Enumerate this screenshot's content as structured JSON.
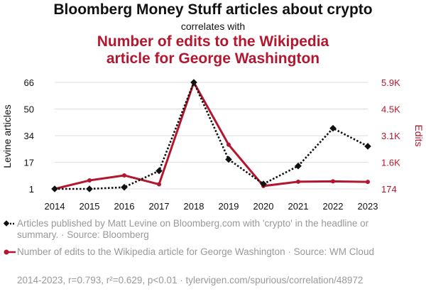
{
  "header": {
    "title": "Bloomberg Money Stuff articles about crypto",
    "correlates": "correlates with",
    "subtitle_line1": "Number of edits to the Wikipedia",
    "subtitle_line2": "article for George Washington"
  },
  "colors": {
    "series1": "#111111",
    "series2": "#b3172f",
    "grid": "#dddddd"
  },
  "chart_data": {
    "type": "line",
    "title": "Bloomberg Money Stuff articles about crypto correlates with Number of edits to the Wikipedia article for George Washington",
    "x": [
      2014,
      2015,
      2016,
      2017,
      2018,
      2019,
      2020,
      2021,
      2022,
      2023
    ],
    "xlabel": "",
    "y_left": {
      "label": "Levine articles",
      "ticks": [
        "1",
        "17",
        "34",
        "50",
        "66"
      ],
      "range": [
        1,
        66
      ]
    },
    "y_right": {
      "label": "Edits",
      "ticks": [
        "174",
        "1.6K",
        "3.1K",
        "4.5K",
        "5.9K"
      ],
      "range": [
        174,
        5900
      ]
    },
    "series": [
      {
        "name": "Levine articles",
        "axis": "left",
        "style": "dotted",
        "marker": "diamond",
        "values": [
          1,
          1,
          2,
          12,
          66,
          19,
          4,
          15,
          38,
          27
        ]
      },
      {
        "name": "Edits",
        "axis": "right",
        "style": "solid",
        "marker": "circle",
        "values": [
          174,
          630,
          900,
          420,
          5900,
          2550,
          330,
          560,
          580,
          550
        ]
      }
    ],
    "grid": "horizontal"
  },
  "legend": {
    "item1": "Articles published by Matt Levine on Bloomberg.com with 'crypto' in the headline or summary. · Source: Bloomberg",
    "item2": "Number of edits to the Wikipedia article for George Washington · Source: WM Cloud"
  },
  "footer": "2014-2023, r=0.793, r²=0.629, p<0.01 · tylervigen.com/spurious/correlation/48972"
}
